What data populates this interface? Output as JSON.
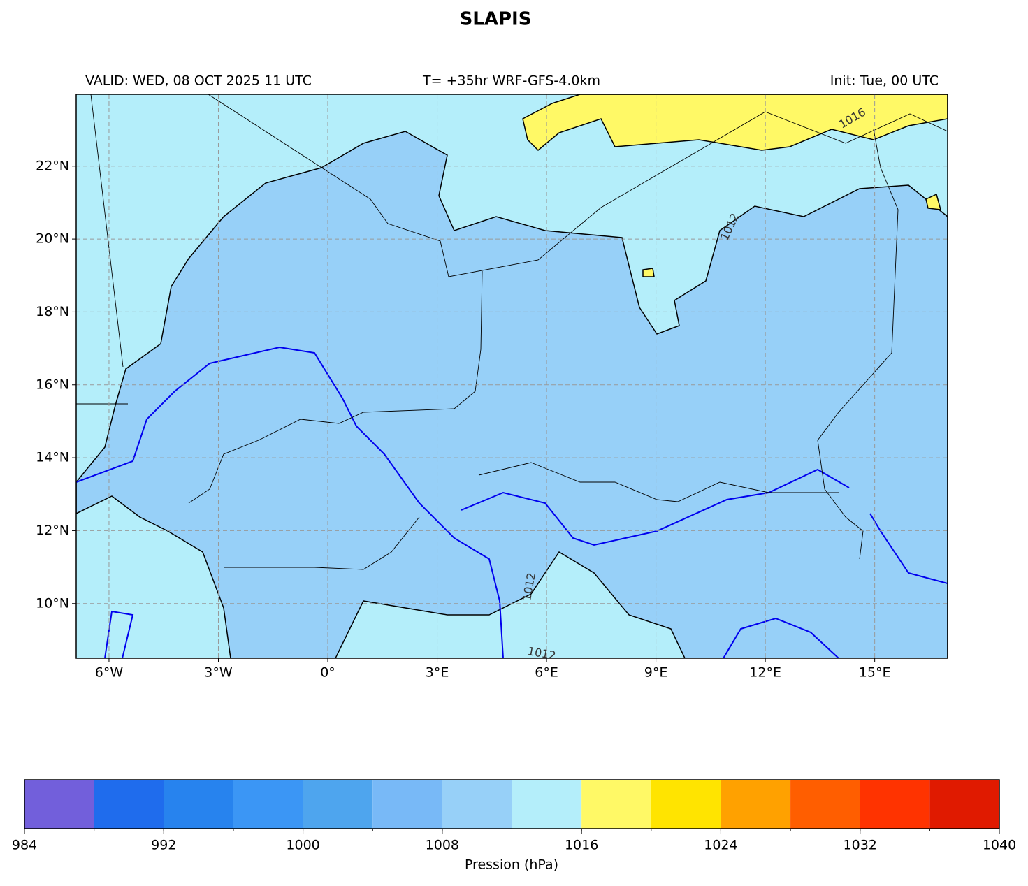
{
  "title": "SLAPIS",
  "header": {
    "left": "VALID: WED, 08 OCT 2025 11 UTC",
    "center": "T= +35hr WRF-GFS-4.0km",
    "right": "Init: Tue, 00 UTC"
  },
  "map": {
    "xlim": [
      -6.9,
      17.0
    ],
    "ylim": [
      8.5,
      23.97
    ],
    "grid": true,
    "xticks": [
      {
        "value": -6,
        "label": "6°W"
      },
      {
        "value": -3,
        "label": "3°W"
      },
      {
        "value": 0,
        "label": "0°"
      },
      {
        "value": 3,
        "label": "3°E"
      },
      {
        "value": 6,
        "label": "6°E"
      },
      {
        "value": 9,
        "label": "9°E"
      },
      {
        "value": 12,
        "label": "12°E"
      },
      {
        "value": 15,
        "label": "15°E"
      }
    ],
    "yticks": [
      {
        "value": 10,
        "label": "10°N"
      },
      {
        "value": 12,
        "label": "12°N"
      },
      {
        "value": 14,
        "label": "14°N"
      },
      {
        "value": 16,
        "label": "16°N"
      },
      {
        "value": 18,
        "label": "18°N"
      },
      {
        "value": 20,
        "label": "20°N"
      },
      {
        "value": 22,
        "label": "22°N"
      }
    ],
    "contour_labels": [
      1016,
      1012,
      1012,
      1012
    ]
  },
  "colorbar": {
    "label": "Pression (hPa)",
    "xlim": [
      984,
      1040
    ],
    "levels": [
      984,
      988,
      992,
      996,
      1000,
      1004,
      1008,
      1012,
      1016,
      1020,
      1024,
      1028,
      1032,
      1036,
      1040
    ],
    "colors": [
      "#725fdb",
      "#1f6ced",
      "#2783ee",
      "#3b96f5",
      "#4ea5ee",
      "#78b9f7",
      "#97d0f8",
      "#b4eefa",
      "#fff966",
      "#ffe400",
      "#ffa100",
      "#ff5e00",
      "#ff3300",
      "#e01a00"
    ],
    "xticks": [
      984,
      992,
      1000,
      1008,
      1016,
      1024,
      1032,
      1040
    ]
  }
}
